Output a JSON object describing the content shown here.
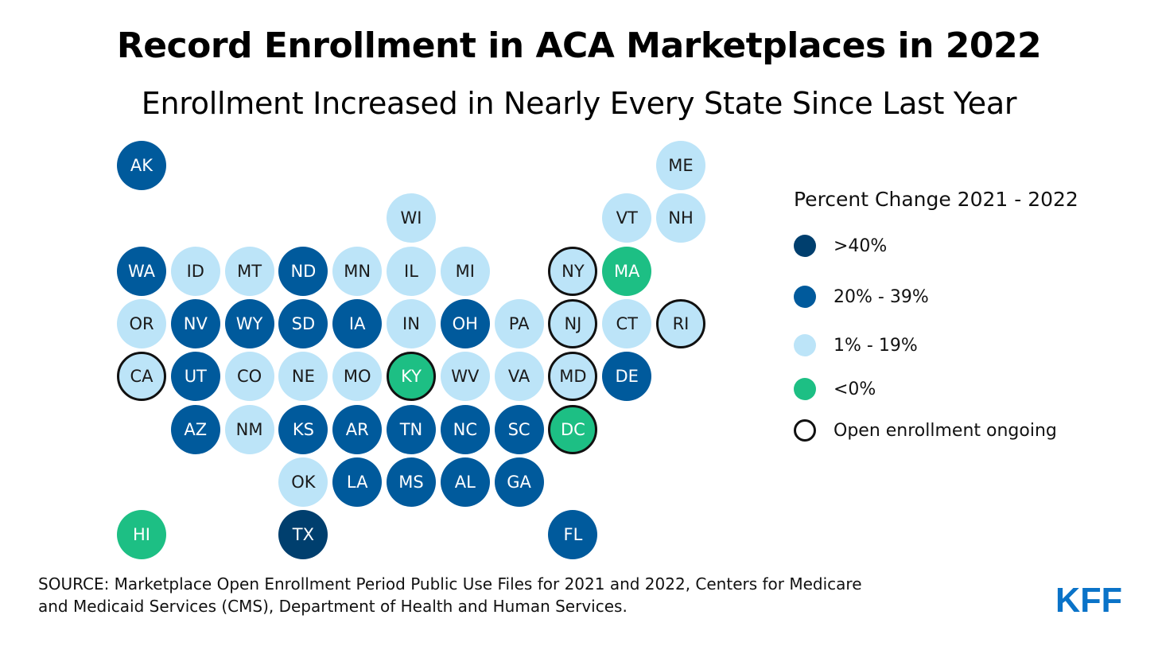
{
  "title": "Record Enrollment in ACA Marketplaces in 2022",
  "subtitle": "Enrollment Increased in Nearly Every State Since Last Year",
  "colors": {
    "gt40": "#003f6e",
    "20to39": "#005a9c",
    "1to19": "#bce4f8",
    "lt0": "#1dbf84",
    "outline": "#111111"
  },
  "legend": {
    "title": "Percent Change 2021 - 2022",
    "items": [
      {
        "key": "gt40",
        "label": ">40%"
      },
      {
        "key": "20to39",
        "label": "20% - 39%"
      },
      {
        "key": "1to19",
        "label": "1% - 19%"
      },
      {
        "key": "lt0",
        "label": "<0%"
      },
      {
        "key": "open",
        "label": "Open enrollment ongoing"
      }
    ]
  },
  "states": [
    {
      "abbr": "AK",
      "row": 0,
      "col": 0,
      "category": "20to39",
      "open": false
    },
    {
      "abbr": "ME",
      "row": 0,
      "col": 10,
      "category": "1to19",
      "open": false
    },
    {
      "abbr": "WI",
      "row": 1,
      "col": 5,
      "category": "1to19",
      "open": false
    },
    {
      "abbr": "VT",
      "row": 1,
      "col": 9,
      "category": "1to19",
      "open": false
    },
    {
      "abbr": "NH",
      "row": 1,
      "col": 10,
      "category": "1to19",
      "open": false
    },
    {
      "abbr": "WA",
      "row": 2,
      "col": 0,
      "category": "20to39",
      "open": false
    },
    {
      "abbr": "ID",
      "row": 2,
      "col": 1,
      "category": "1to19",
      "open": false
    },
    {
      "abbr": "MT",
      "row": 2,
      "col": 2,
      "category": "1to19",
      "open": false
    },
    {
      "abbr": "ND",
      "row": 2,
      "col": 3,
      "category": "20to39",
      "open": false
    },
    {
      "abbr": "MN",
      "row": 2,
      "col": 4,
      "category": "1to19",
      "open": false
    },
    {
      "abbr": "IL",
      "row": 2,
      "col": 5,
      "category": "1to19",
      "open": false
    },
    {
      "abbr": "MI",
      "row": 2,
      "col": 6,
      "category": "1to19",
      "open": false
    },
    {
      "abbr": "NY",
      "row": 2,
      "col": 8,
      "category": "1to19",
      "open": true
    },
    {
      "abbr": "MA",
      "row": 2,
      "col": 9,
      "category": "lt0",
      "open": false
    },
    {
      "abbr": "OR",
      "row": 3,
      "col": 0,
      "category": "1to19",
      "open": false
    },
    {
      "abbr": "NV",
      "row": 3,
      "col": 1,
      "category": "20to39",
      "open": false
    },
    {
      "abbr": "WY",
      "row": 3,
      "col": 2,
      "category": "20to39",
      "open": false
    },
    {
      "abbr": "SD",
      "row": 3,
      "col": 3,
      "category": "20to39",
      "open": false
    },
    {
      "abbr": "IA",
      "row": 3,
      "col": 4,
      "category": "20to39",
      "open": false
    },
    {
      "abbr": "IN",
      "row": 3,
      "col": 5,
      "category": "1to19",
      "open": false
    },
    {
      "abbr": "OH",
      "row": 3,
      "col": 6,
      "category": "20to39",
      "open": false
    },
    {
      "abbr": "PA",
      "row": 3,
      "col": 7,
      "category": "1to19",
      "open": false
    },
    {
      "abbr": "NJ",
      "row": 3,
      "col": 8,
      "category": "1to19",
      "open": true
    },
    {
      "abbr": "CT",
      "row": 3,
      "col": 9,
      "category": "1to19",
      "open": false
    },
    {
      "abbr": "RI",
      "row": 3,
      "col": 10,
      "category": "1to19",
      "open": true
    },
    {
      "abbr": "CA",
      "row": 4,
      "col": 0,
      "category": "1to19",
      "open": true
    },
    {
      "abbr": "UT",
      "row": 4,
      "col": 1,
      "category": "20to39",
      "open": false
    },
    {
      "abbr": "CO",
      "row": 4,
      "col": 2,
      "category": "1to19",
      "open": false
    },
    {
      "abbr": "NE",
      "row": 4,
      "col": 3,
      "category": "1to19",
      "open": false
    },
    {
      "abbr": "MO",
      "row": 4,
      "col": 4,
      "category": "1to19",
      "open": false
    },
    {
      "abbr": "KY",
      "row": 4,
      "col": 5,
      "category": "lt0",
      "open": true
    },
    {
      "abbr": "WV",
      "row": 4,
      "col": 6,
      "category": "1to19",
      "open": false
    },
    {
      "abbr": "VA",
      "row": 4,
      "col": 7,
      "category": "1to19",
      "open": false
    },
    {
      "abbr": "MD",
      "row": 4,
      "col": 8,
      "category": "1to19",
      "open": true
    },
    {
      "abbr": "DE",
      "row": 4,
      "col": 9,
      "category": "20to39",
      "open": false
    },
    {
      "abbr": "AZ",
      "row": 5,
      "col": 1,
      "category": "20to39",
      "open": false
    },
    {
      "abbr": "NM",
      "row": 5,
      "col": 2,
      "category": "1to19",
      "open": false
    },
    {
      "abbr": "KS",
      "row": 5,
      "col": 3,
      "category": "20to39",
      "open": false
    },
    {
      "abbr": "AR",
      "row": 5,
      "col": 4,
      "category": "20to39",
      "open": false
    },
    {
      "abbr": "TN",
      "row": 5,
      "col": 5,
      "category": "20to39",
      "open": false
    },
    {
      "abbr": "NC",
      "row": 5,
      "col": 6,
      "category": "20to39",
      "open": false
    },
    {
      "abbr": "SC",
      "row": 5,
      "col": 7,
      "category": "20to39",
      "open": false
    },
    {
      "abbr": "DC",
      "row": 5,
      "col": 8,
      "category": "lt0",
      "open": true
    },
    {
      "abbr": "OK",
      "row": 6,
      "col": 3,
      "category": "1to19",
      "open": false
    },
    {
      "abbr": "LA",
      "row": 6,
      "col": 4,
      "category": "20to39",
      "open": false
    },
    {
      "abbr": "MS",
      "row": 6,
      "col": 5,
      "category": "20to39",
      "open": false
    },
    {
      "abbr": "AL",
      "row": 6,
      "col": 6,
      "category": "20to39",
      "open": false
    },
    {
      "abbr": "GA",
      "row": 6,
      "col": 7,
      "category": "20to39",
      "open": false
    },
    {
      "abbr": "HI",
      "row": 7,
      "col": 0,
      "category": "lt0",
      "open": false
    },
    {
      "abbr": "TX",
      "row": 7,
      "col": 3,
      "category": "gt40",
      "open": false
    },
    {
      "abbr": "FL",
      "row": 7,
      "col": 8,
      "category": "20to39",
      "open": false
    }
  ],
  "source": {
    "line1": "SOURCE: Marketplace Open Enrollment Period Public Use Files for 2021 and 2022, Centers for Medicare",
    "line2": "and Medicaid Services (CMS), Department of Health and Human Services."
  },
  "logo": {
    "text": "KFF",
    "color": "#0a73c8"
  }
}
